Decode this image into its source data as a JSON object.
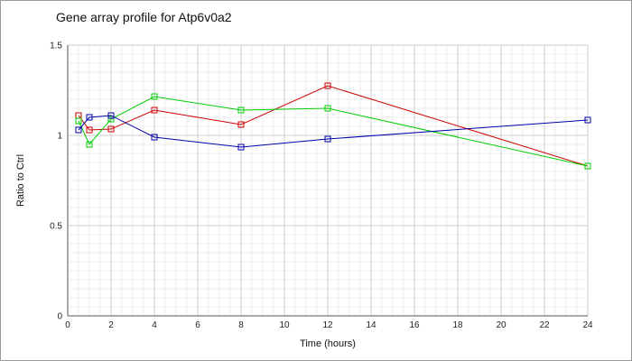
{
  "chart_data": {
    "type": "line",
    "title": "Gene array profile for Atp6v0a2",
    "xlabel": "Time (hours)",
    "ylabel": "Ratio to Ctrl",
    "xlim": [
      0,
      24
    ],
    "ylim": [
      0,
      1.5
    ],
    "x_ticks": [
      0,
      2,
      4,
      6,
      8,
      10,
      12,
      14,
      16,
      18,
      20,
      22,
      24
    ],
    "y_ticks": [
      0,
      0.5,
      1,
      1.5
    ],
    "y_tick_labels": [
      "0",
      "0.5",
      "1",
      "1.5"
    ],
    "grid": true,
    "legend": "none",
    "series": [
      {
        "color": "#cc0000",
        "x": [
          0.5,
          1,
          2,
          4,
          8,
          12,
          24
        ],
        "y": [
          1.11,
          1.03,
          1.035,
          1.14,
          1.06,
          1.275,
          0.83
        ]
      },
      {
        "color": "#00cc00",
        "x": [
          0.5,
          1,
          2,
          4,
          8,
          12,
          24
        ],
        "y": [
          1.08,
          0.95,
          1.09,
          1.215,
          1.14,
          1.15,
          0.83
        ]
      },
      {
        "color": "#0000aa",
        "x": [
          0.5,
          1,
          2,
          4,
          8,
          12,
          24
        ],
        "y": [
          1.03,
          1.1,
          1.11,
          0.99,
          0.935,
          0.98,
          1.085
        ]
      }
    ]
  }
}
